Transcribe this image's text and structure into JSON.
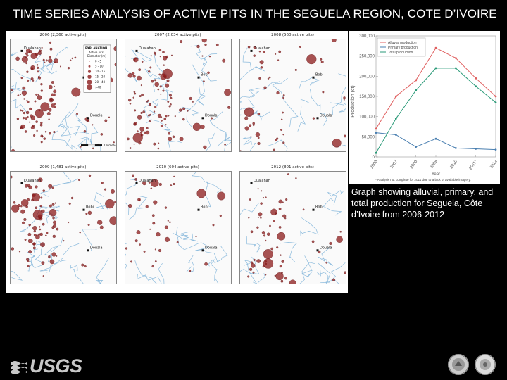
{
  "slide": {
    "title": "TIME SERIES ANALYSIS OF ACTIVE PITS IN THE SEGUELA REGION, COTE D’IVOIRE",
    "caption": "Graph showing alluvial, primary, and total production for Seguela, Côte d’Ivoire from 2006-2012",
    "logo_text": "USGS"
  },
  "maps": [
    {
      "title": "2006 (2,360 active pits)"
    },
    {
      "title": "2007 (2,034 active pits)"
    },
    {
      "title": "2008 (560 active pits)"
    },
    {
      "title": "2009 (1,481 active pits)"
    },
    {
      "title": "2010 (604 active pits)"
    },
    {
      "title": "2012 (801 active pits)"
    }
  ],
  "map_labels": {
    "town_1": "Dualahan",
    "town_2": "Bobi",
    "town_3": "Douala"
  },
  "map_legend": {
    "title": "EXPLANATION",
    "subtitle": "Active pits",
    "subtitle2": "Diameter (m)",
    "items": [
      "0 - 5",
      "5 - 10",
      "10 - 15",
      "15 - 20",
      "20 - 40",
      ">40"
    ],
    "scale_label": "Kilometers"
  },
  "colors": {
    "pit": "#8b1a1a",
    "river": "#7fb4d9",
    "alluvial": "#e06060",
    "primary": "#4a7fb0",
    "total": "#2a9a78"
  },
  "chart_data": {
    "type": "line",
    "x": [
      "2006",
      "2007",
      "2008",
      "2009",
      "2010",
      "2011*",
      "2012"
    ],
    "series": [
      {
        "name": "Alluvial production",
        "values": [
          70000,
          150000,
          190000,
          270000,
          245000,
          195000,
          150000
        ]
      },
      {
        "name": "Primary production",
        "values": [
          60000,
          55000,
          25000,
          45000,
          22000,
          20000,
          18000
        ]
      },
      {
        "name": "Total production",
        "values": [
          10000,
          95000,
          165000,
          220000,
          220000,
          175000,
          135000
        ]
      }
    ],
    "xlabel": "Year",
    "ylabel": "Production (ct)",
    "ylim": [
      0,
      300000
    ],
    "yticks": [
      "0",
      "50,000",
      "100,000",
      "150,000",
      "200,000",
      "250,000",
      "300,000"
    ],
    "legend": "top-right",
    "footnote": "* Analysis not complete for 2011 due to a lack of available imagery."
  }
}
